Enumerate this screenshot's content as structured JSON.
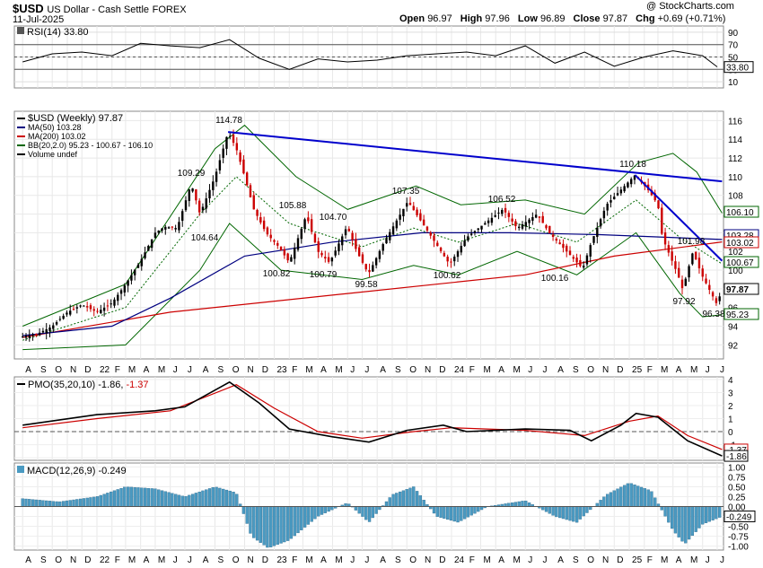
{
  "header": {
    "symbol": "$USD",
    "name": "US Dollar - Cash Settle",
    "exchange": "FOREX",
    "date": "11-Jul-2025",
    "watermark": "@ StockCharts.com",
    "open_label": "Open",
    "open": "96.97",
    "high_label": "High",
    "high": "97.96",
    "low_label": "Low",
    "low": "96.89",
    "close_label": "Close",
    "close": "97.87",
    "chg_label": "Chg",
    "chg": "+0.69 (+0.71%)"
  },
  "colors": {
    "up": "#000000",
    "down": "#cc0000",
    "trendline": "#0000cc",
    "ma50": "#000080",
    "ma200": "#cc0000",
    "bb": "#006600",
    "hist": "#4a9ac2",
    "rsi_fill": "#5a7a5a"
  },
  "legend": {
    "rsi": "RSI(14) 33.80",
    "price": "$USD (Weekly) 97.87",
    "ma50": "MA(50) 103.28",
    "ma200": "MA(200) 103.02",
    "bb": "BB(20,2.0) 95.23 - 100.67 - 106.10",
    "volume": "Volume undef",
    "pmo_prefix": "PMO(35,20,10) -1.86,",
    "pmo_signal": " -1.37",
    "macd": "MACD(12,26,9) -0.249"
  },
  "chart_data": [
    {
      "type": "line",
      "title": "RSI(14) 33.80",
      "y_ticks": [
        10,
        30,
        50,
        70,
        90
      ],
      "ylim": [
        0,
        100
      ],
      "reference_lines": [
        30,
        50,
        70
      ],
      "last_value_label": "33.80",
      "x_dates": [
        "2021-08",
        "2021-10",
        "2021-12",
        "2022-02",
        "2022-04",
        "2022-06",
        "2022-08",
        "2022-10",
        "2022-12",
        "2023-02",
        "2023-04",
        "2023-06",
        "2023-08",
        "2023-10",
        "2023-12",
        "2024-02",
        "2024-04",
        "2024-06",
        "2024-08",
        "2024-10",
        "2024-12",
        "2025-02",
        "2025-04",
        "2025-06",
        "2025-07"
      ],
      "series": [
        {
          "values": [
            42,
            55,
            58,
            52,
            72,
            68,
            65,
            78,
            48,
            30,
            47,
            42,
            45,
            52,
            55,
            58,
            52,
            68,
            40,
            58,
            35,
            50,
            60,
            52,
            34
          ]
        }
      ]
    },
    {
      "type": "line",
      "title": "$USD (Weekly) 97.87",
      "y_ticks": [
        92,
        94,
        96,
        98,
        100,
        102,
        104,
        106,
        108,
        110,
        112,
        114,
        116
      ],
      "ylim": [
        90.5,
        117
      ],
      "x_tick_labels": [
        "A",
        "S",
        "O",
        "N",
        "D",
        "22",
        "F",
        "M",
        "A",
        "M",
        "J",
        "J",
        "A",
        "S",
        "O",
        "N",
        "D",
        "23",
        "F",
        "M",
        "A",
        "M",
        "J",
        "J",
        "A",
        "S",
        "O",
        "N",
        "D",
        "24",
        "F",
        "M",
        "A",
        "M",
        "J",
        "J",
        "A",
        "S",
        "O",
        "N",
        "D",
        "25",
        "F",
        "M",
        "A",
        "M",
        "J",
        "J"
      ],
      "annotations": [
        "114.78",
        "109.29",
        "104.64",
        "105.88",
        "100.82",
        "104.70",
        "100.79",
        "99.58",
        "107.35",
        "100.62",
        "106.52",
        "100.16",
        "110.18",
        "101.98",
        "97.92",
        "96.38"
      ],
      "price_path": [
        [
          "2021-08-01",
          92.9
        ],
        [
          "2021-09-01",
          93.2
        ],
        [
          "2021-10-01",
          94.0
        ],
        [
          "2021-11-01",
          95.5
        ],
        [
          "2021-12-01",
          96.3
        ],
        [
          "2022-01-01",
          95.5
        ],
        [
          "2022-02-01",
          96.5
        ],
        [
          "2022-03-01",
          98.5
        ],
        [
          "2022-04-01",
          101.0
        ],
        [
          "2022-05-01",
          104.0
        ],
        [
          "2022-05-20",
          104.64
        ],
        [
          "2022-06-15",
          104.5
        ],
        [
          "2022-07-14",
          109.29
        ],
        [
          "2022-08-01",
          106.0
        ],
        [
          "2022-09-01",
          110.0
        ],
        [
          "2022-09-28",
          114.78
        ],
        [
          "2022-10-15",
          113.0
        ],
        [
          "2022-11-01",
          110.0
        ],
        [
          "2022-11-20",
          106.5
        ],
        [
          "2022-12-15",
          104.0
        ],
        [
          "2023-01-10",
          102.5
        ],
        [
          "2023-02-01",
          100.82
        ],
        [
          "2023-03-08",
          105.88
        ],
        [
          "2023-04-01",
          102.0
        ],
        [
          "2023-04-25",
          100.79
        ],
        [
          "2023-05-31",
          104.7
        ],
        [
          "2023-06-20",
          102.0
        ],
        [
          "2023-07-14",
          99.58
        ],
        [
          "2023-08-15",
          103.0
        ],
        [
          "2023-10-03",
          107.35
        ],
        [
          "2023-11-15",
          104.0
        ],
        [
          "2023-12-28",
          100.62
        ],
        [
          "2024-02-01",
          103.5
        ],
        [
          "2024-04-16",
          106.52
        ],
        [
          "2024-05-15",
          104.5
        ],
        [
          "2024-06-25",
          106.0
        ],
        [
          "2024-07-20",
          104.0
        ],
        [
          "2024-09-27",
          100.16
        ],
        [
          "2024-10-15",
          103.0
        ],
        [
          "2024-11-15",
          107.0
        ],
        [
          "2025-01-13",
          110.18
        ],
        [
          "2025-02-10",
          108.5
        ],
        [
          "2025-03-01",
          107.0
        ],
        [
          "2025-03-10",
          103.5
        ],
        [
          "2025-04-11",
          99.5
        ],
        [
          "2025-04-21",
          97.92
        ],
        [
          "2025-05-12",
          101.98
        ],
        [
          "2025-05-30",
          99.5
        ],
        [
          "2025-06-30",
          96.38
        ],
        [
          "2025-07-11",
          97.87
        ]
      ],
      "ma50": [
        [
          "2021-08-01",
          93.0
        ],
        [
          "2022-02-01",
          94.0
        ],
        [
          "2022-06-01",
          97.0
        ],
        [
          "2022-11-01",
          101.5
        ],
        [
          "2023-05-01",
          103.0
        ],
        [
          "2023-11-01",
          104.0
        ],
        [
          "2024-05-01",
          104.0
        ],
        [
          "2024-11-01",
          103.8
        ],
        [
          "2025-07-11",
          103.28
        ]
      ],
      "ma200": [
        [
          "2021-08-01",
          92.8
        ],
        [
          "2022-06-01",
          95.5
        ],
        [
          "2023-06-01",
          97.5
        ],
        [
          "2024-06-01",
          99.5
        ],
        [
          "2024-12-01",
          101.5
        ],
        [
          "2025-07-11",
          103.02
        ]
      ],
      "bb_mid": [
        [
          "2021-08-01",
          92.5
        ],
        [
          "2022-03-01",
          96.0
        ],
        [
          "2022-08-01",
          106.0
        ],
        [
          "2022-10-15",
          110.0
        ],
        [
          "2023-02-01",
          105.0
        ],
        [
          "2023-07-01",
          102.5
        ],
        [
          "2023-10-15",
          104.5
        ],
        [
          "2024-01-15",
          103.0
        ],
        [
          "2024-05-15",
          105.0
        ],
        [
          "2024-09-15",
          103.0
        ],
        [
          "2025-01-15",
          107.5
        ],
        [
          "2025-04-15",
          103.5
        ],
        [
          "2025-07-11",
          100.67
        ]
      ],
      "bb_upper": [
        [
          "2021-08-01",
          94.0
        ],
        [
          "2022-03-01",
          98.5
        ],
        [
          "2022-09-01",
          113.0
        ],
        [
          "2022-11-01",
          115.5
        ],
        [
          "2023-02-15",
          110.0
        ],
        [
          "2023-06-01",
          106.5
        ],
        [
          "2023-10-20",
          109.0
        ],
        [
          "2024-01-20",
          107.0
        ],
        [
          "2024-06-01",
          107.5
        ],
        [
          "2024-10-01",
          106.0
        ],
        [
          "2025-01-20",
          111.5
        ],
        [
          "2025-04-01",
          112.5
        ],
        [
          "2025-05-20",
          110.5
        ],
        [
          "2025-07-11",
          106.1
        ]
      ],
      "bb_lower": [
        [
          "2021-08-01",
          91.5
        ],
        [
          "2022-03-01",
          92.0
        ],
        [
          "2022-08-01",
          100.0
        ],
        [
          "2022-10-01",
          105.0
        ],
        [
          "2023-01-15",
          100.0
        ],
        [
          "2023-07-01",
          99.0
        ],
        [
          "2023-10-15",
          100.5
        ],
        [
          "2024-01-15",
          99.5
        ],
        [
          "2024-05-15",
          102.0
        ],
        [
          "2024-09-15",
          99.5
        ],
        [
          "2025-01-15",
          104.0
        ],
        [
          "2025-04-15",
          97.5
        ],
        [
          "2025-06-01",
          95.0
        ],
        [
          "2025-07-11",
          95.23
        ]
      ],
      "trendlines": [
        [
          [
            "2022-09-28",
            114.78
          ],
          [
            "2025-07-11",
            109.5
          ]
        ],
        [
          [
            "2025-01-13",
            110.18
          ],
          [
            "2025-07-11",
            101.0
          ]
        ]
      ],
      "last_values": [
        "106.10",
        "103.28",
        "103.02",
        "100.67",
        "97.87",
        "95.23"
      ]
    },
    {
      "type": "line",
      "title": "PMO(35,20,10) -1.86, -1.37",
      "y_ticks": [
        -2,
        -1,
        0,
        1,
        2,
        3,
        4
      ],
      "ylim": [
        -2.2,
        4.2
      ],
      "last_value_labels": [
        "-1.37",
        "-1.86"
      ],
      "series": [
        {
          "name": "PMO",
          "values": [
            [
              "2021-08-01",
              0.5
            ],
            [
              "2022-01-01",
              1.3
            ],
            [
              "2022-05-01",
              1.6
            ],
            [
              "2022-07-01",
              1.9
            ],
            [
              "2022-10-01",
              3.8
            ],
            [
              "2022-12-01",
              2.2
            ],
            [
              "2023-02-01",
              0.2
            ],
            [
              "2023-05-01",
              -0.4
            ],
            [
              "2023-07-15",
              -0.8
            ],
            [
              "2023-10-01",
              0.1
            ],
            [
              "2023-12-15",
              0.5
            ],
            [
              "2024-02-01",
              0.0
            ],
            [
              "2024-06-01",
              0.2
            ],
            [
              "2024-09-01",
              0.1
            ],
            [
              "2024-10-15",
              -0.7
            ],
            [
              "2024-12-15",
              0.5
            ],
            [
              "2025-01-15",
              1.4
            ],
            [
              "2025-03-01",
              1.1
            ],
            [
              "2025-05-01",
              -0.7
            ],
            [
              "2025-07-11",
              -1.86
            ]
          ]
        },
        {
          "name": "Signal",
          "values": [
            [
              "2021-08-01",
              0.3
            ],
            [
              "2022-01-01",
              1.0
            ],
            [
              "2022-06-01",
              1.6
            ],
            [
              "2022-10-15",
              3.6
            ],
            [
              "2023-01-01",
              1.8
            ],
            [
              "2023-04-01",
              0.0
            ],
            [
              "2023-07-01",
              -0.5
            ],
            [
              "2023-10-15",
              0.0
            ],
            [
              "2024-01-01",
              0.3
            ],
            [
              "2024-06-01",
              0.1
            ],
            [
              "2024-10-01",
              -0.3
            ],
            [
              "2025-01-01",
              0.8
            ],
            [
              "2025-03-01",
              1.2
            ],
            [
              "2025-05-01",
              -0.3
            ],
            [
              "2025-07-11",
              -1.37
            ]
          ]
        }
      ]
    },
    {
      "type": "bar",
      "title": "MACD(12,26,9) -0.249",
      "y_ticks": [
        "1.00",
        "0.75",
        "0.50",
        "0.25",
        "0.00",
        "-0.25",
        "-0.50",
        "-0.75",
        "-1.00"
      ],
      "ylim": [
        -1.1,
        1.1
      ],
      "last_value_label": "-0.249",
      "hist": [
        [
          "2021-08-01",
          0.2
        ],
        [
          "2021-10-15",
          0.12
        ],
        [
          "2022-01-01",
          0.25
        ],
        [
          "2022-03-01",
          0.5
        ],
        [
          "2022-05-01",
          0.45
        ],
        [
          "2022-07-01",
          0.25
        ],
        [
          "2022-09-01",
          0.5
        ],
        [
          "2022-10-15",
          0.35
        ],
        [
          "2022-11-15",
          -0.75
        ],
        [
          "2022-12-20",
          -1.05
        ],
        [
          "2023-02-01",
          -0.85
        ],
        [
          "2023-04-01",
          -0.25
        ],
        [
          "2023-06-01",
          0.1
        ],
        [
          "2023-07-15",
          -0.4
        ],
        [
          "2023-09-01",
          0.3
        ],
        [
          "2023-10-15",
          0.5
        ],
        [
          "2023-12-01",
          -0.25
        ],
        [
          "2024-01-15",
          -0.4
        ],
        [
          "2024-03-15",
          0.0
        ],
        [
          "2024-06-01",
          0.15
        ],
        [
          "2024-08-01",
          -0.25
        ],
        [
          "2024-09-15",
          -0.4
        ],
        [
          "2024-11-15",
          0.3
        ],
        [
          "2025-01-01",
          0.6
        ],
        [
          "2025-02-15",
          0.4
        ],
        [
          "2025-04-01",
          -0.6
        ],
        [
          "2025-04-25",
          -0.95
        ],
        [
          "2025-06-01",
          -0.45
        ],
        [
          "2025-07-11",
          -0.25
        ]
      ]
    }
  ]
}
